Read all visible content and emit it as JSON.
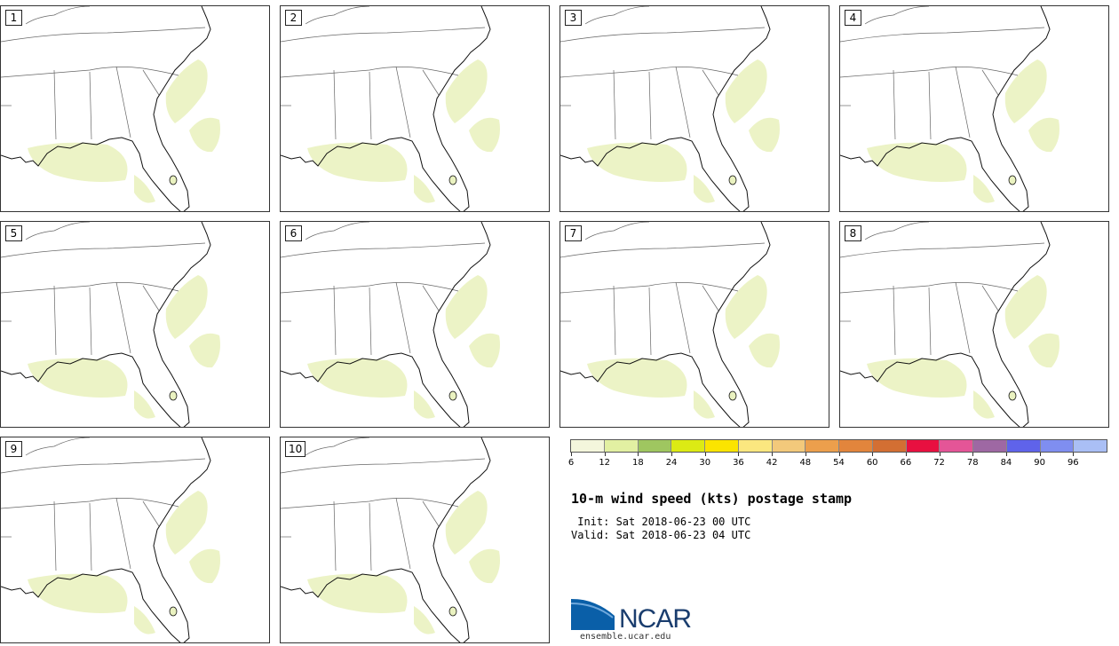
{
  "panels": [
    "1",
    "2",
    "3",
    "4",
    "5",
    "6",
    "7",
    "8",
    "9",
    "10"
  ],
  "colorbar": {
    "colors": [
      "#f4f6dc",
      "#e2f0a2",
      "#9fc660",
      "#dcea14",
      "#fbe400",
      "#fbe77f",
      "#f3c97b",
      "#ec9f4c",
      "#e2853c",
      "#d36f33",
      "#e81040",
      "#e45597",
      "#9e68a3",
      "#5f63ea",
      "#7f8ef0",
      "#aabff5"
    ],
    "ticks": [
      "6",
      "12",
      "18",
      "24",
      "30",
      "36",
      "42",
      "48",
      "54",
      "60",
      "66",
      "72",
      "78",
      "84",
      "90",
      "96"
    ]
  },
  "title": "10-m wind speed (kts) postage stamp",
  "init": " Init: Sat 2018-06-23 00 UTC",
  "valid": "Valid: Sat 2018-06-23 04 UTC",
  "logo": {
    "name": "NCAR",
    "url": "ensemble.ucar.edu"
  }
}
